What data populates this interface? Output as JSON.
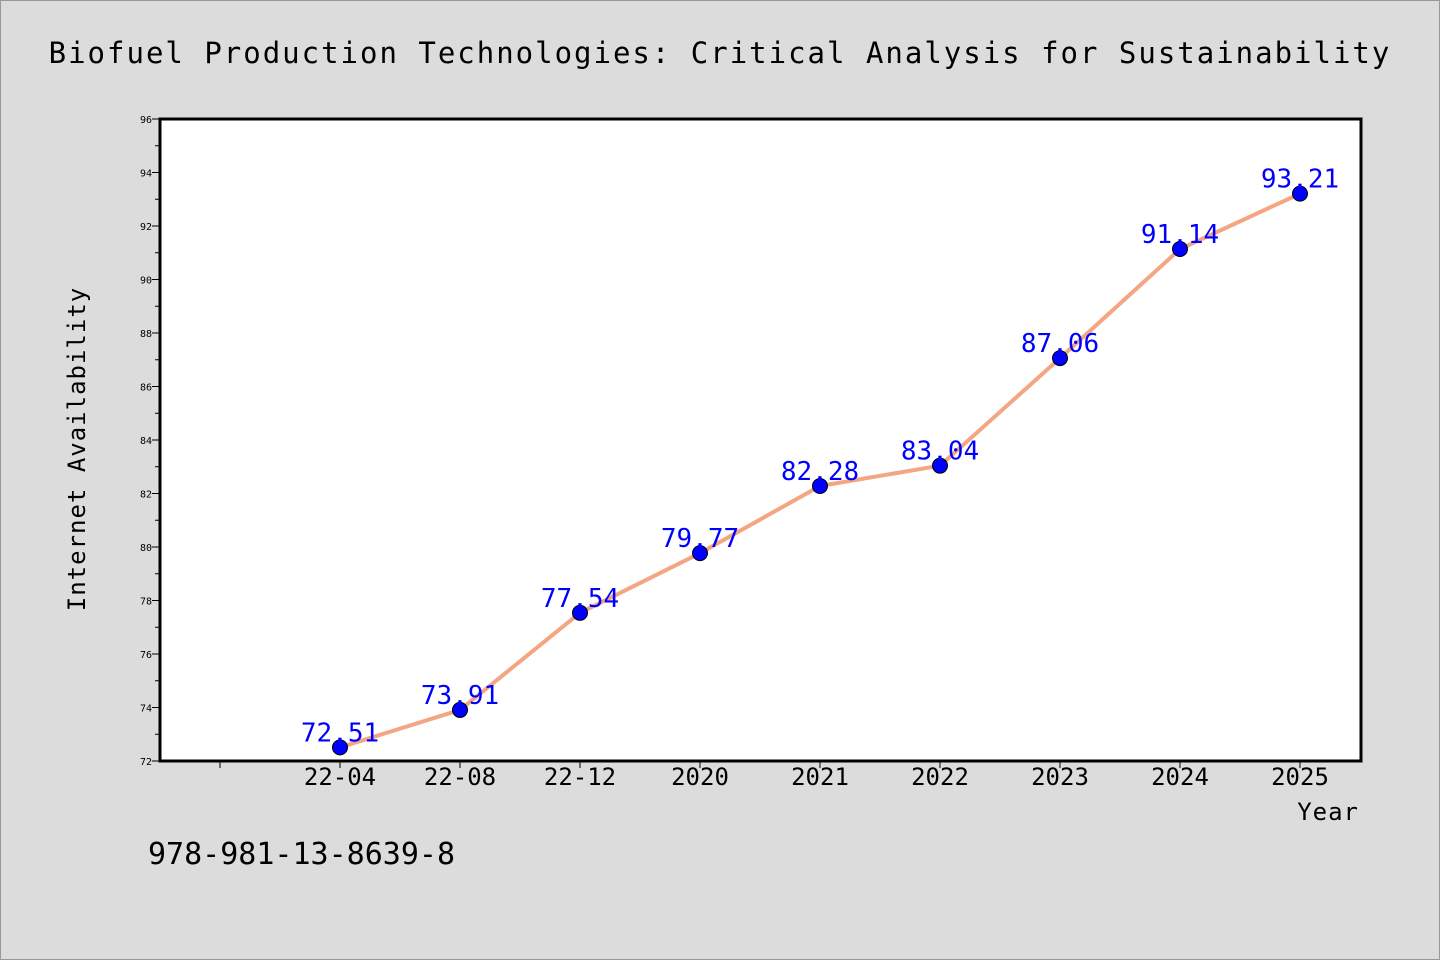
{
  "chart_data": {
    "type": "line",
    "title": "Biofuel Production Technologies: Critical Analysis for Sustainability",
    "xlabel": "Year",
    "ylabel": "Internet Availability",
    "categories": [
      "22-04",
      "22-08",
      "22-12",
      "2020",
      "2021",
      "2022",
      "2023",
      "2024",
      "2025"
    ],
    "series": [
      {
        "values": [
          72.51,
          73.91,
          77.54,
          79.77,
          82.28,
          83.04,
          87.06,
          91.14,
          93.21
        ],
        "data_labels": [
          "72.51",
          "73.91",
          "77.54",
          "79.77",
          "82.28",
          "83.04",
          "87.06",
          "91.14",
          "93.21"
        ],
        "line_color": "#f4a582",
        "marker_color": "#0000ff",
        "label_color": "#0000ff"
      }
    ],
    "ylim": [
      72,
      96
    ],
    "yticks": [
      "72",
      "74",
      "76",
      "78",
      "80",
      "82",
      "84",
      "86",
      "88",
      "90",
      "92",
      "94",
      "96"
    ],
    "grid": false,
    "legend": false
  },
  "footer": {
    "isbn": "978-981-13-8639-8"
  }
}
